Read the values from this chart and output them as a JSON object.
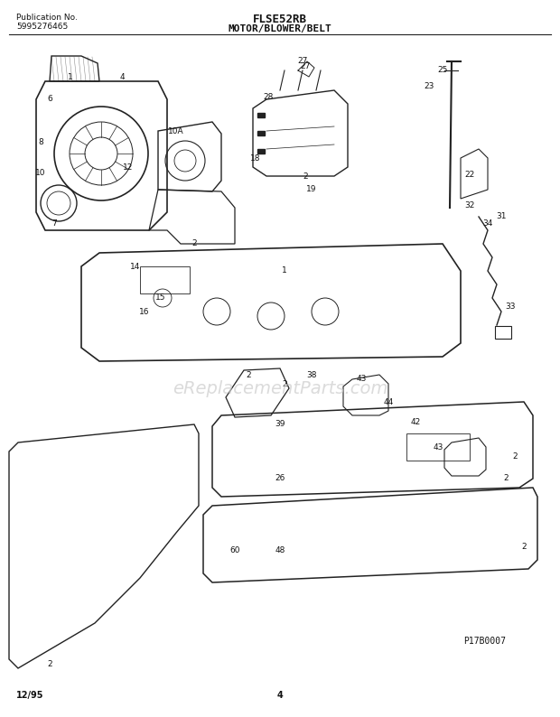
{
  "title_center": "FLSE52RB",
  "subtitle_center": "MOTOR/BLOWER/BELT",
  "pub_line1": "Publication No.",
  "pub_line2": "5995276465",
  "footer_left": "12/95",
  "footer_center": "4",
  "watermark": "eReplacementParts.com",
  "part_id": "P17B0007",
  "bg_color": "#ffffff",
  "line_color": "#222222",
  "text_color": "#111111",
  "watermark_color": "#cccccc",
  "fig_width": 6.2,
  "fig_height": 7.94,
  "dpi": 100
}
